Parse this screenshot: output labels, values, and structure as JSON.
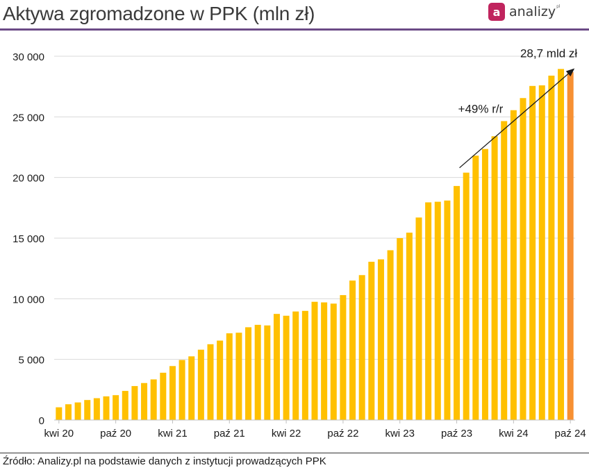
{
  "title": "Aktywa zgromadzone w PPK (mln zł)",
  "logo": {
    "text": "analizy",
    "mark": "a",
    "superscript": "pl"
  },
  "source": "Źródło: Analizy.pl na podstawie danych z instytucji prowadzących PPK",
  "colors": {
    "bar": "#ffc000",
    "bar_last": "#f79032",
    "accent": "#6b4a86",
    "logo": "#c0245e"
  },
  "chart_data": {
    "type": "bar",
    "title": "Aktywa zgromadzone w PPK (mln zł)",
    "xlabel": "",
    "ylabel": "",
    "ylim": [
      0,
      30000
    ],
    "yticks": [
      0,
      5000,
      10000,
      15000,
      20000,
      25000,
      30000
    ],
    "ytick_labels": [
      "0",
      "5 000",
      "10 000",
      "15 000",
      "20 000",
      "25 000",
      "30 000"
    ],
    "xtick_labels": [
      "kwi 20",
      "paź 20",
      "kwi 21",
      "paź 21",
      "kwi 22",
      "paź 22",
      "kwi 23",
      "paź 23",
      "kwi 24",
      "paź 24"
    ],
    "categories": [
      "kwi 20",
      "maj 20",
      "cze 20",
      "lip 20",
      "sie 20",
      "wrz 20",
      "paź 20",
      "lis 20",
      "gru 20",
      "sty 21",
      "lut 21",
      "mar 21",
      "kwi 21",
      "maj 21",
      "cze 21",
      "lip 21",
      "sie 21",
      "wrz 21",
      "paź 21",
      "lis 21",
      "gru 21",
      "sty 22",
      "lut 22",
      "mar 22",
      "kwi 22",
      "maj 22",
      "cze 22",
      "lip 22",
      "sie 22",
      "wrz 22",
      "paź 22",
      "lis 22",
      "gru 22",
      "sty 23",
      "lut 23",
      "mar 23",
      "kwi 23",
      "maj 23",
      "cze 23",
      "lip 23",
      "sie 23",
      "wrz 23",
      "paź 23",
      "lis 23",
      "gru 23",
      "sty 24",
      "lut 24",
      "mar 24",
      "kwi 24",
      "maj 24",
      "cze 24",
      "lip 24",
      "sie 24",
      "wrz 24",
      "paź 24"
    ],
    "values": [
      1050,
      1300,
      1450,
      1650,
      1800,
      1950,
      2050,
      2400,
      2800,
      3050,
      3350,
      3900,
      4450,
      4950,
      5250,
      5800,
      6250,
      6550,
      7150,
      7200,
      7650,
      7850,
      7800,
      8750,
      8600,
      8950,
      9000,
      9750,
      9700,
      9600,
      10300,
      11500,
      11950,
      13050,
      13250,
      14000,
      15000,
      15450,
      16700,
      17950,
      18000,
      18100,
      19300,
      20400,
      21800,
      22350,
      23400,
      24650,
      25550,
      26550,
      27550,
      27600,
      28400,
      28950,
      28700
    ],
    "highlight_last": true,
    "annotations": [
      {
        "text": "+49% r/r"
      },
      {
        "text": "28,7 mld zł"
      }
    ],
    "grid": true
  }
}
